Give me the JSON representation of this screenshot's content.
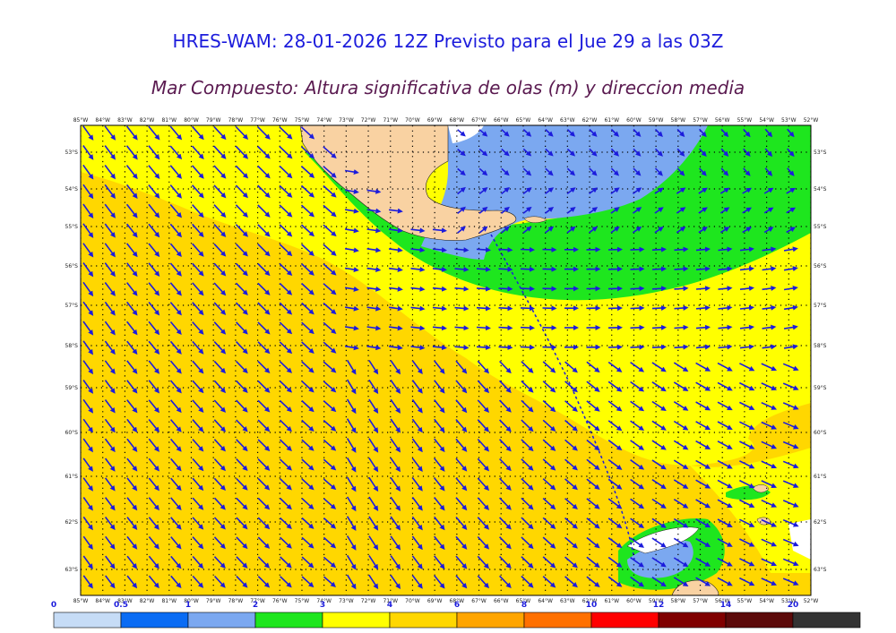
{
  "header": {
    "title": "HRES-WAM: 28-01-2026 12Z Previsto para el Jue 29 a las 03Z",
    "subtitle": "Mar Compuesto: Altura significativa de olas (m) y direccion media"
  },
  "map": {
    "lon_labels": [
      "85°W",
      "84°W",
      "83°W",
      "82°W",
      "81°W",
      "80°W",
      "79°W",
      "78°W",
      "77°W",
      "76°W",
      "75°W",
      "74°W",
      "73°W",
      "72°W",
      "71°W",
      "70°W",
      "69°W",
      "68°W",
      "67°W",
      "66°W",
      "65°W",
      "64°W",
      "63°W",
      "62°W",
      "61°W",
      "60°W",
      "59°W",
      "58°W",
      "57°W",
      "56°W",
      "55°W",
      "54°W",
      "53°W",
      "52°W"
    ],
    "lat_labels": [
      "53°S",
      "54°S",
      "55°S",
      "56°S",
      "57°S",
      "58°S",
      "59°S",
      "60°S",
      "61°S",
      "62°S",
      "63°S"
    ],
    "colors": {
      "land": "#f9d2a2",
      "ice": "#ffffff",
      "arrow": "#1c1cdc",
      "grid": "#000000"
    }
  },
  "legend": {
    "ticks": [
      "0",
      "0.5",
      "1",
      "2",
      "3",
      "4",
      "6",
      "8",
      "10",
      "12",
      "14",
      "20"
    ],
    "bins": [
      {
        "from": "0",
        "to": "0.5",
        "color": "#c6dcf6"
      },
      {
        "from": "0.5",
        "to": "1",
        "color": "#0a6cf4"
      },
      {
        "from": "1",
        "to": "2",
        "color": "#7ba8f0"
      },
      {
        "from": "2",
        "to": "3",
        "color": "#1ee61e"
      },
      {
        "from": "3",
        "to": "4",
        "color": "#ffff00"
      },
      {
        "from": "4",
        "to": "6",
        "color": "#ffd700"
      },
      {
        "from": "6",
        "to": "8",
        "color": "#ffa500"
      },
      {
        "from": "8",
        "to": "10",
        "color": "#ff7000"
      },
      {
        "from": "10",
        "to": "12",
        "color": "#ff0000"
      },
      {
        "from": "12",
        "to": "14",
        "color": "#800000"
      },
      {
        "from": "14",
        "to": "20",
        "color": "#5c0a0a"
      },
      {
        "from": "20",
        "to": "",
        "color": "#333333"
      }
    ]
  }
}
